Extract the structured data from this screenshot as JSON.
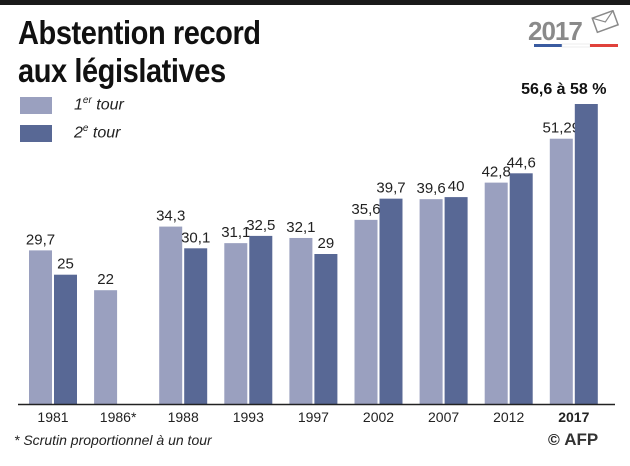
{
  "title": {
    "line1": "Abstention record",
    "line2": "aux législatives"
  },
  "legend": {
    "tour1": {
      "num": "1",
      "sup": "er",
      "word": " tour"
    },
    "tour2": {
      "num": "2",
      "sup": "e",
      "word": " tour"
    }
  },
  "logo": {
    "year_text": "2017"
  },
  "footnote": "* Scrutin proportionnel à un tour",
  "credit": {
    "symbol": "©",
    "agency": "AFP"
  },
  "colors": {
    "tour1": "#9aa0bf",
    "tour2": "#586895",
    "axis": "#222222",
    "flag_blue": "#3a5ba0",
    "flag_red": "#e0413b"
  },
  "chart_data": {
    "type": "bar",
    "title": "Abstention record aux législatives",
    "xlabel": "",
    "ylabel": "",
    "ylim": [
      0,
      58
    ],
    "grid": false,
    "legend_position": "top-left",
    "categories": [
      "1981",
      "1986*",
      "1988",
      "1993",
      "1997",
      "2002",
      "2007",
      "2012",
      "2017"
    ],
    "highlight_category": "2017",
    "series": [
      {
        "name": "1er tour",
        "values": [
          29.7,
          22,
          34.3,
          31.1,
          32.1,
          35.6,
          39.6,
          42.8,
          51.29
        ],
        "labels": [
          "29,7",
          "22",
          "34,3",
          "31,1",
          "32,1",
          "35,6",
          "39,6",
          "42,8",
          "51,29"
        ]
      },
      {
        "name": "2e tour",
        "values": [
          25,
          null,
          30.1,
          32.5,
          29,
          39.7,
          40,
          44.6,
          58
        ],
        "labels": [
          "25",
          "",
          "30,1",
          "32,5",
          "29",
          "39,7",
          "40",
          "44,6",
          ""
        ]
      }
    ],
    "annotation": "56,6 à 58 %"
  }
}
